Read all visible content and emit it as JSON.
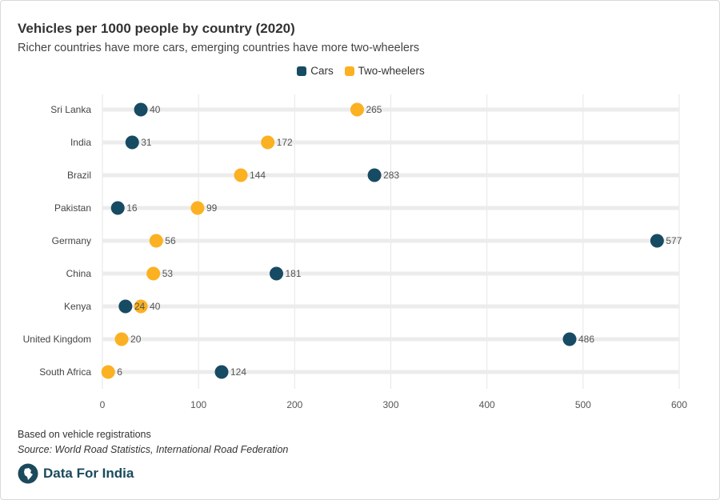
{
  "header": {
    "title": "Vehicles per 1000 people by country (2020)",
    "subtitle": "Richer countries have more cars, emerging countries have more two-wheelers"
  },
  "legend": {
    "cars": "Cars",
    "two_wheelers": "Two-wheelers"
  },
  "colors": {
    "cars": "#174b63",
    "two_wheelers": "#fbb121",
    "track": "#ececec",
    "grid": "#e6e6e6"
  },
  "chart_data": {
    "type": "dumbbell",
    "title": "Vehicles per 1000 people by country (2020)",
    "categories": [
      "Sri Lanka",
      "India",
      "Brazil",
      "Pakistan",
      "Germany",
      "China",
      "Kenya",
      "United Kingdom",
      "South Africa"
    ],
    "series": [
      {
        "name": "Cars",
        "values": [
          40,
          31,
          283,
          16,
          577,
          181,
          24,
          486,
          124
        ]
      },
      {
        "name": "Two-wheelers",
        "values": [
          265,
          172,
          144,
          99,
          56,
          53,
          40,
          20,
          6
        ]
      }
    ],
    "xlim": [
      0,
      600
    ],
    "xticks": [
      0,
      100,
      200,
      300,
      400,
      500,
      600
    ],
    "grid": true,
    "legend_position": "top-center"
  },
  "footer": {
    "note": "Based on vehicle registrations",
    "source": "Source: World Road Statistics, International Road Federation",
    "brand": "Data For India",
    "brand_icon": "data-for-india-logo-icon"
  }
}
